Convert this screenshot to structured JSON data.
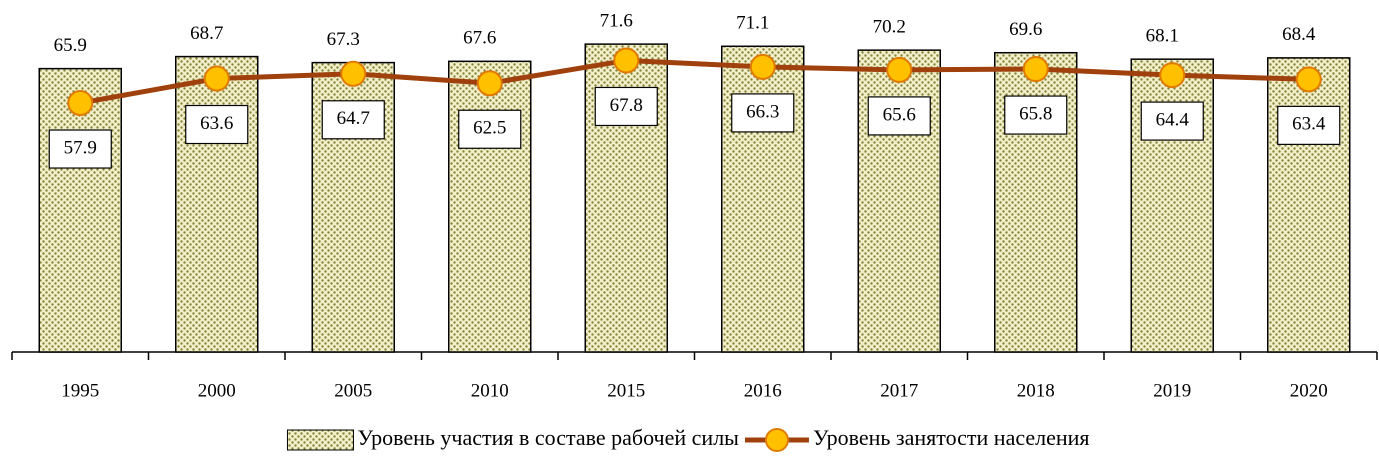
{
  "chart_data": {
    "type": "bar_line",
    "categories": [
      "1995",
      "2000",
      "2005",
      "2010",
      "2015",
      "2016",
      "2017",
      "2018",
      "2019",
      "2020"
    ],
    "series": [
      {
        "name": "Уровень участия в составе рабочей силы",
        "type": "bar",
        "color": "#8a8a3c",
        "values": [
          65.9,
          68.7,
          67.3,
          67.6,
          71.6,
          71.1,
          70.2,
          69.6,
          68.1,
          68.4
        ]
      },
      {
        "name": "Уровень занятости населения",
        "type": "line",
        "color": "#a0410d",
        "marker_color": "#ffc000",
        "values": [
          57.9,
          63.6,
          64.7,
          62.5,
          67.8,
          66.3,
          65.6,
          65.8,
          64.4,
          63.4
        ]
      }
    ],
    "ylim": [
      0,
      80
    ],
    "legend": "bottom"
  }
}
